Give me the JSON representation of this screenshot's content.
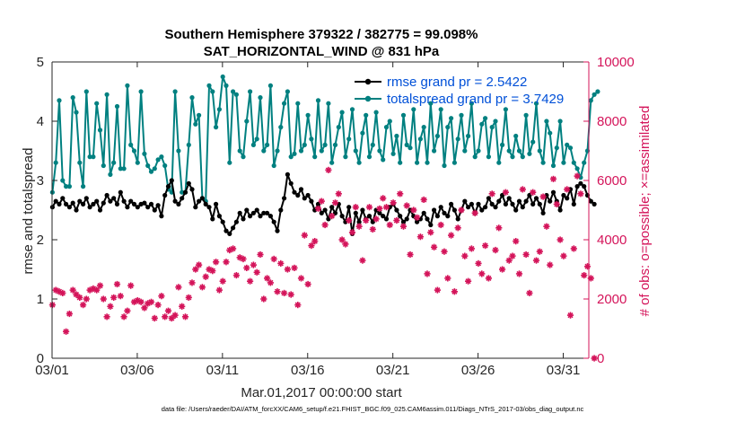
{
  "chart_data": {
    "type": "line",
    "title_line1": "Southern Hemisphere 379322 / 382775 = 99.098%",
    "title_line2": "SAT_HORIZONTAL_WIND @ 831 hPa",
    "xlabel": "Mar.01,2017 00:00:00 start",
    "ylabel_left": "rmse and totalspread",
    "ylabel_right": "# of obs: o=possible; ×=assimilated",
    "x_ticks": [
      "03/01",
      "03/06",
      "03/11",
      "03/16",
      "03/21",
      "03/26",
      "03/31"
    ],
    "x_tick_days": [
      0,
      5,
      10,
      15,
      20,
      25,
      30
    ],
    "y_left_ticks": [
      "0",
      "1",
      "2",
      "3",
      "4",
      "5"
    ],
    "y_right_ticks": [
      "0",
      "2000",
      "4000",
      "6000",
      "8000",
      "10000"
    ],
    "xlim": [
      0,
      31.5
    ],
    "ylim_left": [
      0,
      5
    ],
    "ylim_right": [
      0,
      10000
    ],
    "legend_placement": "top-right",
    "footnote": "data file: /Users/raeder/DAI/ATM_forcXX/CAM6_setup/f.e21.FHIST_BGC.f09_025.CAM6assim.011/Diags_NTrS_2017-03/obs_diag_output.nc",
    "colors": {
      "rmse": "#000000",
      "spread": "#008080",
      "obs": "#d4145a",
      "axis": "#262626"
    },
    "series": [
      {
        "name": "rmse grand pr = 2.5422",
        "axis": "left",
        "marker": "circle",
        "values": [
          2.55,
          2.65,
          2.6,
          2.7,
          2.6,
          2.55,
          2.62,
          2.5,
          2.65,
          2.6,
          2.7,
          2.55,
          2.6,
          2.65,
          2.5,
          2.62,
          2.75,
          2.65,
          2.7,
          2.6,
          2.8,
          2.65,
          2.55,
          2.65,
          2.6,
          2.55,
          2.6,
          2.62,
          2.55,
          2.6,
          2.5,
          2.58,
          2.4,
          2.75,
          2.9,
          3.0,
          2.65,
          2.6,
          2.7,
          2.8,
          2.95,
          2.85,
          2.55,
          2.65,
          2.7,
          2.6,
          2.55,
          2.35,
          2.6,
          2.4,
          2.3,
          2.15,
          2.1,
          2.2,
          2.3,
          2.45,
          2.35,
          2.5,
          2.4,
          2.45,
          2.5,
          2.4,
          2.45,
          2.45,
          2.4,
          2.3,
          2.15,
          2.5,
          2.7,
          3.1,
          2.95,
          2.8,
          2.75,
          2.85,
          2.7,
          2.75,
          2.65,
          2.5,
          2.6,
          2.45,
          2.5,
          2.35,
          2.55,
          2.45,
          2.6,
          2.4,
          2.3,
          2.55,
          2.1,
          2.45,
          2.3,
          2.5,
          2.35,
          2.4,
          2.3,
          2.5,
          2.45,
          2.4,
          2.35,
          2.55,
          2.6,
          2.5,
          2.4,
          2.3,
          2.35,
          2.5,
          2.4,
          2.3,
          2.35,
          2.45,
          2.35,
          2.25,
          2.5,
          2.4,
          2.55,
          2.45,
          2.4,
          2.6,
          2.5,
          2.35,
          2.5,
          2.65,
          2.55,
          2.6,
          2.45,
          2.6,
          2.5,
          2.55,
          2.7,
          2.6,
          2.55,
          2.65,
          2.75,
          2.6,
          2.7,
          2.6,
          2.5,
          2.65,
          2.55,
          2.65,
          2.75,
          2.6,
          2.7,
          2.6,
          2.45,
          2.75,
          2.65,
          2.8,
          2.65,
          2.5,
          2.75,
          2.7,
          2.85,
          2.6,
          2.9,
          2.95,
          2.9,
          2.75,
          2.65,
          2.6
        ]
      },
      {
        "name": "totalspread grand pr = 3.7429",
        "axis": "left",
        "marker": "circle",
        "values": [
          2.8,
          3.3,
          4.35,
          3.0,
          2.9,
          2.9,
          4.4,
          4.15,
          3.3,
          2.9,
          4.5,
          3.4,
          3.4,
          4.3,
          3.85,
          3.25,
          4.45,
          3.1,
          3.3,
          4.25,
          3.2,
          3.2,
          4.6,
          3.6,
          3.5,
          3.3,
          4.5,
          3.45,
          3.25,
          3.15,
          3.2,
          3.35,
          3.4,
          3.25,
          2.85,
          2.8,
          4.5,
          3.5,
          2.8,
          2.8,
          3.6,
          4.4,
          3.95,
          4.1,
          2.7,
          2.65,
          4.6,
          4.5,
          3.9,
          4.2,
          4.75,
          4.6,
          3.3,
          4.5,
          4.45,
          3.5,
          3.4,
          4.0,
          4.5,
          3.6,
          3.7,
          4.4,
          3.5,
          3.6,
          4.6,
          3.25,
          3.5,
          3.9,
          4.3,
          4.5,
          3.4,
          3.45,
          4.3,
          3.5,
          3.6,
          4.1,
          3.7,
          3.4,
          4.35,
          3.5,
          3.6,
          4.3,
          3.3,
          3.6,
          3.9,
          4.15,
          3.4,
          3.7,
          4.2,
          3.5,
          3.3,
          3.8,
          4.1,
          3.4,
          3.6,
          4.15,
          3.5,
          3.35,
          3.9,
          4.0,
          3.45,
          3.75,
          3.3,
          4.1,
          3.6,
          3.55,
          4.2,
          3.3,
          3.7,
          3.9,
          3.3,
          4.3,
          3.5,
          3.75,
          4.2,
          3.25,
          3.9,
          4.05,
          3.3,
          3.7,
          4.1,
          3.5,
          3.75,
          4.3,
          3.4,
          3.5,
          3.95,
          4.05,
          3.4,
          3.9,
          4.0,
          3.3,
          3.6,
          4.2,
          3.5,
          3.4,
          3.75,
          3.5,
          3.4,
          4.1,
          3.45,
          3.65,
          4.3,
          3.5,
          3.3,
          4.0,
          3.8,
          3.25,
          3.55,
          4.0,
          3.3,
          3.6,
          3.55,
          3.3,
          3.2,
          3.05,
          3.3,
          3.5,
          4.35,
          4.45,
          4.5
        ]
      },
      {
        "name": "# of obs assimilated",
        "axis": "right",
        "marker": "asterisk",
        "values": [
          1800,
          2300,
          2250,
          2200,
          900,
          1500,
          2300,
          2150,
          2050,
          1800,
          2000,
          2300,
          2350,
          2300,
          2450,
          2000,
          1400,
          1750,
          2050,
          2500,
          2100,
          1400,
          1600,
          2450,
          1900,
          1950,
          1900,
          1700,
          1850,
          1900,
          1350,
          1800,
          2100,
          1400,
          1600,
          1350,
          1450,
          2400,
          1750,
          1400,
          2050,
          2550,
          3000,
          3150,
          2400,
          2750,
          3000,
          2950,
          3250,
          2300,
          2600,
          3250,
          3650,
          3700,
          2800,
          3400,
          3350,
          3050,
          2600,
          3150,
          2900,
          3500,
          2000,
          2700,
          2550,
          3350,
          2250,
          3200,
          2200,
          3000,
          2150,
          3050,
          1800,
          2700,
          4150,
          2500,
          3800,
          3950,
          5050,
          5300,
          4500,
          6350,
          4800,
          5250,
          5550,
          4000,
          3850,
          4650,
          4250,
          5100,
          4450,
          3300,
          4650,
          5100,
          4350,
          4700,
          5050,
          5400,
          5100,
          4500,
          5250,
          4650,
          5550,
          4450,
          5150,
          3500,
          5000,
          4750,
          4100,
          5350,
          2850,
          4250,
          3750,
          2300,
          4500,
          3600,
          2700,
          4150,
          2250,
          4400,
          5000,
          3450,
          2600,
          3700,
          4900,
          3200,
          2850,
          3800,
          2700,
          5550,
          3650,
          4400,
          3000,
          5600,
          3300,
          3450,
          3950,
          2850,
          5700,
          3500,
          2200,
          5600,
          3300,
          3600,
          5450,
          4450,
          3150,
          6050,
          5200,
          4000,
          3450,
          5700,
          1450,
          3700,
          6150,
          5550,
          2800,
          3100,
          2700,
          0
        ]
      }
    ]
  }
}
